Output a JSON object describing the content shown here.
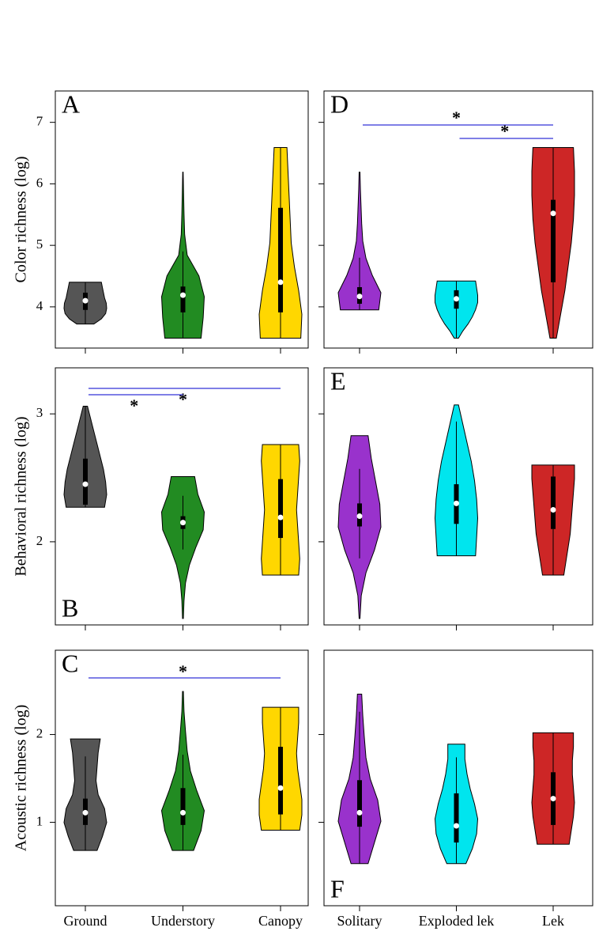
{
  "chart_data": [
    {
      "type": "violin",
      "panel": "A",
      "y_label": "Color richness (log)",
      "ylim": [
        3.33,
        7.51
      ],
      "yticks": [
        4,
        5,
        6,
        7
      ],
      "tick_labels": true,
      "violins": [
        {
          "color": "#555555",
          "min": 3.72,
          "max": 4.4,
          "q1": 3.95,
          "median": 4.1,
          "q3": 4.23,
          "whisker_low": 3.72,
          "whisker_high": 4.4,
          "density": [
            0.4,
            0.75,
            0.95,
            1,
            0.98,
            0.9,
            0.85,
            0.8,
            0.75
          ]
        },
        {
          "color": "#228b22",
          "min": 3.49,
          "max": 6.19,
          "q1": 3.91,
          "median": 4.19,
          "q3": 4.33,
          "whisker_low": 3.49,
          "whisker_high": 4.9,
          "density": [
            0.85,
            0.95,
            1,
            0.75,
            0.2,
            0.08,
            0.05,
            0.03,
            0.01
          ]
        },
        {
          "color": "#ffd700",
          "min": 3.49,
          "max": 6.59,
          "q1": 3.91,
          "median": 4.4,
          "q3": 5.61,
          "whisker_low": 3.49,
          "whisker_high": 6.59,
          "density": [
            0.95,
            1,
            0.85,
            0.65,
            0.5,
            0.45,
            0.4,
            0.35,
            0.3
          ]
        }
      ]
    },
    {
      "type": "violin",
      "panel": "B",
      "y_label": "Behavioral richness (log)",
      "ylim": [
        1.35,
        3.36
      ],
      "yticks": [
        2,
        3
      ],
      "tick_labels": true,
      "violins": [
        {
          "color": "#555555",
          "min": 2.27,
          "max": 3.06,
          "q1": 2.29,
          "median": 2.45,
          "q3": 2.65,
          "whisker_low": 2.27,
          "whisker_high": 3.06,
          "density": [
            0.9,
            1,
            0.95,
            0.85,
            0.7,
            0.55,
            0.4,
            0.25,
            0.1
          ]
        },
        {
          "color": "#228b22",
          "min": 1.4,
          "max": 2.51,
          "q1": 2.1,
          "median": 2.15,
          "q3": 2.2,
          "whisker_low": 1.94,
          "whisker_high": 2.36,
          "density": [
            0.02,
            0.05,
            0.12,
            0.3,
            0.6,
            0.95,
            1,
            0.7,
            0.55
          ]
        },
        {
          "color": "#ffd700",
          "min": 1.74,
          "max": 2.76,
          "q1": 2.03,
          "median": 2.19,
          "q3": 2.49,
          "whisker_low": 1.74,
          "whisker_high": 2.76,
          "density": [
            0.85,
            0.9,
            0.85,
            0.8,
            0.75,
            0.8,
            0.85,
            0.9,
            0.85
          ]
        }
      ],
      "comparisons": [
        {
          "label": "*",
          "between": [
            0,
            2
          ]
        },
        {
          "label": "*",
          "between": [
            0,
            1
          ]
        }
      ]
    },
    {
      "type": "violin",
      "panel": "C",
      "y_label": "Acoustic richness (log)",
      "ylim": [
        0.05,
        2.96
      ],
      "yticks": [
        1,
        2
      ],
      "tick_labels": true,
      "categories": [
        "Ground",
        "Understory",
        "Canopy"
      ],
      "violins": [
        {
          "color": "#555555",
          "min": 0.68,
          "max": 1.95,
          "q1": 0.97,
          "median": 1.11,
          "q3": 1.27,
          "whisker_low": 0.68,
          "whisker_high": 1.75,
          "density": [
            0.55,
            0.8,
            1,
            0.9,
            0.6,
            0.5,
            0.55,
            0.6,
            0.7
          ]
        },
        {
          "color": "#228b22",
          "min": 0.68,
          "max": 2.49,
          "q1": 0.97,
          "median": 1.11,
          "q3": 1.39,
          "whisker_low": 0.68,
          "whisker_high": 1.77,
          "density": [
            0.5,
            0.85,
            1,
            0.65,
            0.35,
            0.2,
            0.12,
            0.05,
            0.02
          ]
        },
        {
          "color": "#ffd700",
          "min": 0.91,
          "max": 2.31,
          "q1": 1.09,
          "median": 1.39,
          "q3": 1.86,
          "whisker_low": 0.91,
          "whisker_high": 2.31,
          "density": [
            0.9,
            1,
            1,
            0.9,
            0.8,
            0.75,
            0.8,
            0.85,
            0.85
          ]
        }
      ],
      "comparisons": [
        {
          "label": "*",
          "between": [
            0,
            2
          ]
        }
      ]
    },
    {
      "type": "violin",
      "panel": "D",
      "ylim": [
        3.33,
        7.51
      ],
      "yticks": [
        4,
        5,
        6,
        7
      ],
      "tick_labels": false,
      "violins": [
        {
          "color": "#9932cc",
          "min": 3.95,
          "max": 6.19,
          "q1": 4.05,
          "median": 4.17,
          "q3": 4.32,
          "whisker_low": 3.95,
          "whisker_high": 4.8,
          "density": [
            0.9,
            1,
            0.6,
            0.3,
            0.15,
            0.1,
            0.07,
            0.04,
            0.02
          ]
        },
        {
          "color": "#00e5ee",
          "min": 3.49,
          "max": 4.42,
          "q1": 3.97,
          "median": 4.13,
          "q3": 4.27,
          "whisker_low": 3.49,
          "whisker_high": 4.42,
          "density": [
            0.1,
            0.3,
            0.55,
            0.75,
            0.9,
            1,
            1,
            0.95,
            0.9
          ]
        },
        {
          "color": "#cd2626",
          "min": 3.49,
          "max": 6.59,
          "q1": 4.4,
          "median": 5.52,
          "q3": 5.74,
          "whisker_low": 3.49,
          "whisker_high": 6.59,
          "density": [
            0.15,
            0.35,
            0.55,
            0.7,
            0.85,
            0.95,
            1,
            1,
            0.95
          ]
        }
      ],
      "comparisons": [
        {
          "label": "*",
          "between": [
            0,
            2
          ]
        },
        {
          "label": "*",
          "between": [
            1,
            2
          ]
        }
      ]
    },
    {
      "type": "violin",
      "panel": "E",
      "ylim": [
        1.35,
        3.36
      ],
      "yticks": [
        2,
        3
      ],
      "tick_labels": false,
      "violins": [
        {
          "color": "#9932cc",
          "min": 1.4,
          "max": 2.83,
          "q1": 2.12,
          "median": 2.2,
          "q3": 2.3,
          "whisker_low": 1.87,
          "whisker_high": 2.57,
          "density": [
            0.02,
            0.08,
            0.3,
            0.7,
            1,
            0.95,
            0.75,
            0.55,
            0.4
          ]
        },
        {
          "color": "#00e5ee",
          "min": 1.89,
          "max": 3.07,
          "q1": 2.14,
          "median": 2.3,
          "q3": 2.45,
          "whisker_low": 1.89,
          "whisker_high": 2.94,
          "density": [
            0.9,
            0.95,
            1,
            0.95,
            0.85,
            0.7,
            0.5,
            0.3,
            0.1
          ]
        },
        {
          "color": "#cd2626",
          "min": 1.74,
          "max": 2.6,
          "q1": 2.1,
          "median": 2.25,
          "q3": 2.51,
          "whisker_low": 1.74,
          "whisker_high": 2.6,
          "density": [
            0.5,
            0.6,
            0.7,
            0.8,
            0.85,
            0.9,
            0.95,
            1,
            1
          ]
        }
      ]
    },
    {
      "type": "violin",
      "panel": "F",
      "ylim": [
        0.05,
        2.96
      ],
      "yticks": [
        1,
        2
      ],
      "tick_labels": false,
      "categories": [
        "Solitary",
        "Exploded lek",
        "Lek"
      ],
      "violins": [
        {
          "color": "#9932cc",
          "min": 0.53,
          "max": 2.46,
          "q1": 0.95,
          "median": 1.11,
          "q3": 1.48,
          "whisker_low": 0.53,
          "whisker_high": 2.26,
          "density": [
            0.4,
            0.7,
            1,
            0.85,
            0.5,
            0.3,
            0.22,
            0.15,
            0.1
          ]
        },
        {
          "color": "#00e5ee",
          "min": 0.53,
          "max": 1.89,
          "q1": 0.77,
          "median": 0.96,
          "q3": 1.33,
          "whisker_low": 0.53,
          "whisker_high": 1.74,
          "density": [
            0.45,
            0.75,
            0.95,
            1,
            0.85,
            0.65,
            0.5,
            0.4,
            0.4
          ]
        },
        {
          "color": "#cd2626",
          "min": 0.75,
          "max": 2.02,
          "q1": 0.97,
          "median": 1.27,
          "q3": 1.57,
          "whisker_low": 0.75,
          "whisker_high": 2.02,
          "density": [
            0.75,
            0.85,
            0.95,
            1,
            0.95,
            0.9,
            0.9,
            0.95,
            0.95
          ]
        }
      ]
    }
  ]
}
